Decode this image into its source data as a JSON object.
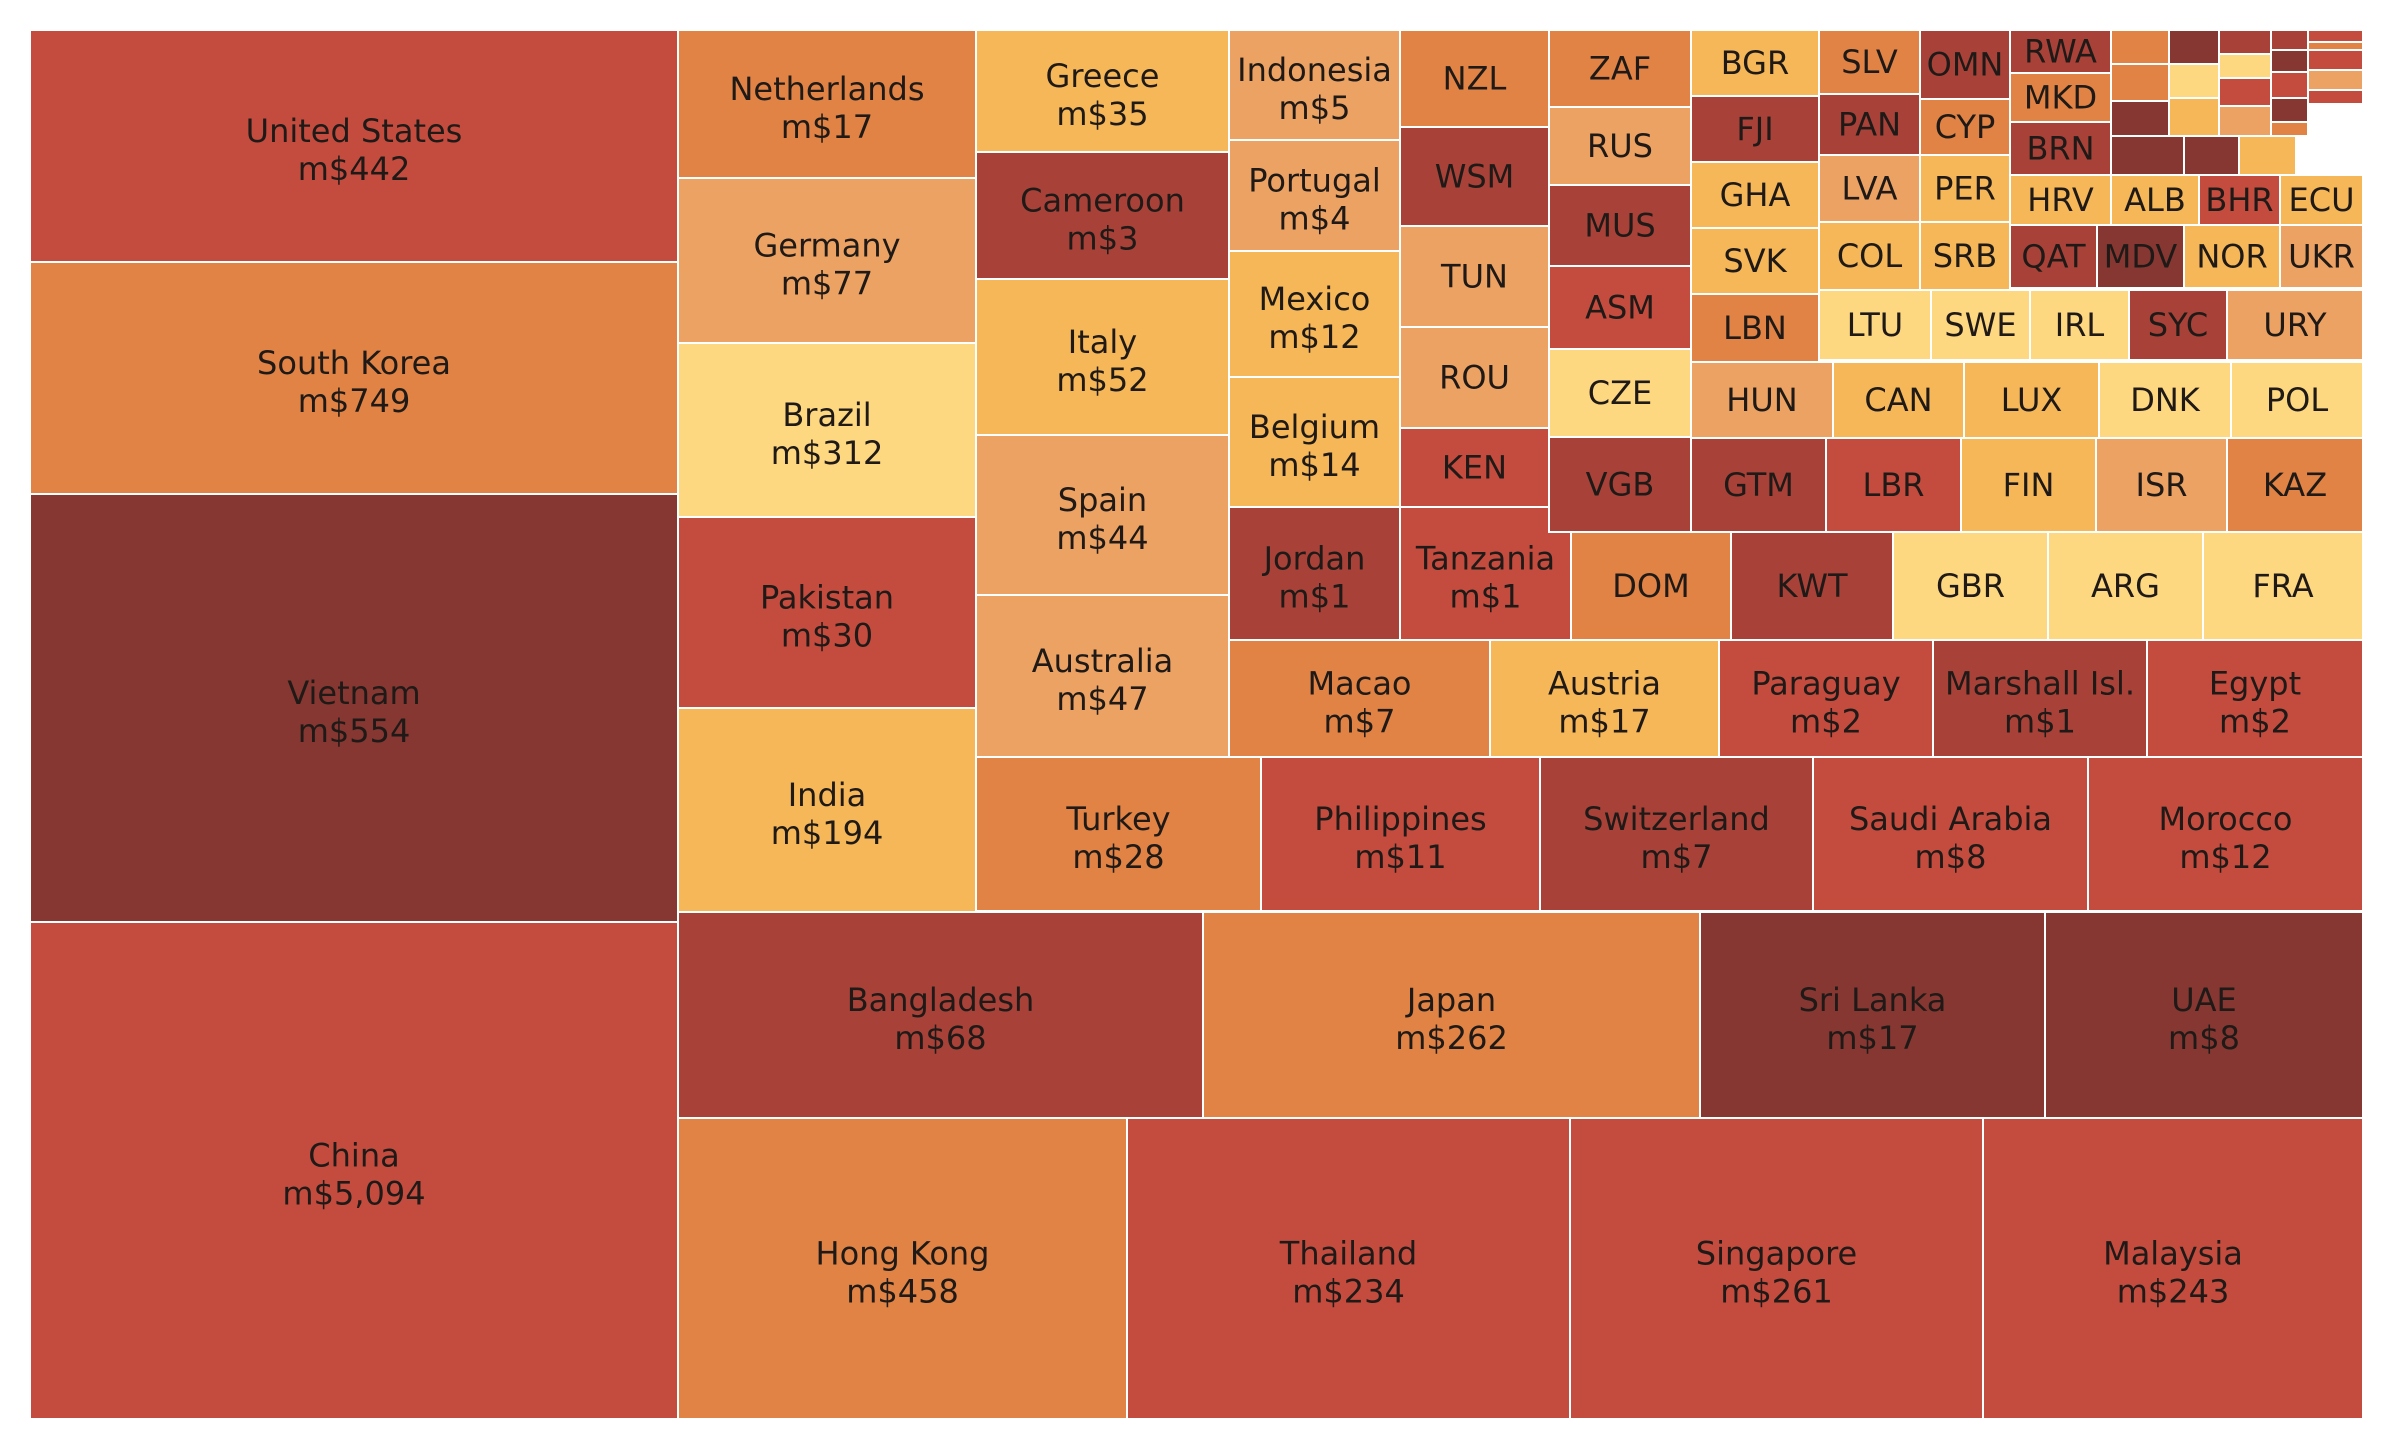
{
  "colors": {
    "c1": "#863731",
    "c2": "#a84239",
    "c3": "#c44c3f",
    "c4": "#e08345",
    "c5": "#eca262",
    "c6": "#f5b757",
    "c7": "#fdd880"
  },
  "chart_data": {
    "type": "treemap",
    "title": "",
    "value_prefix": "m$",
    "tiles": [
      {
        "label": "United States",
        "value": 442,
        "color": "c3"
      },
      {
        "label": "South Korea",
        "value": 749,
        "color": "c4"
      },
      {
        "label": "Vietnam",
        "value": 554,
        "color": "c1"
      },
      {
        "label": "China",
        "value": 5094,
        "color": "c3"
      },
      {
        "label": "Netherlands",
        "value": 17,
        "color": "c4"
      },
      {
        "label": "Germany",
        "value": 77,
        "color": "c5"
      },
      {
        "label": "Brazil",
        "value": 312,
        "color": "c7"
      },
      {
        "label": "Pakistan",
        "value": 30,
        "color": "c3"
      },
      {
        "label": "India",
        "value": 194,
        "color": "c6"
      },
      {
        "label": "Greece",
        "value": 35,
        "color": "c6"
      },
      {
        "label": "Cameroon",
        "value": 3,
        "color": "c2"
      },
      {
        "label": "Italy",
        "value": 52,
        "color": "c6"
      },
      {
        "label": "Spain",
        "value": 44,
        "color": "c5"
      },
      {
        "label": "Australia",
        "value": 47,
        "color": "c5"
      },
      {
        "label": "Indonesia",
        "value": 5,
        "color": "c5"
      },
      {
        "label": "Portugal",
        "value": 4,
        "color": "c5"
      },
      {
        "label": "Mexico",
        "value": 12,
        "color": "c6"
      },
      {
        "label": "Belgium",
        "value": 14,
        "color": "c6"
      },
      {
        "label": "Jordan",
        "value": 1,
        "color": "c2"
      },
      {
        "label": "Tanzania",
        "value": 1,
        "color": "c3"
      },
      {
        "label": "Macao",
        "value": 7,
        "color": "c4"
      },
      {
        "label": "Austria",
        "value": 17,
        "color": "c6"
      },
      {
        "label": "Paraguay",
        "value": 2,
        "color": "c3"
      },
      {
        "label": "Marshall Isl.",
        "value": 1,
        "color": "c2"
      },
      {
        "label": "Egypt",
        "value": 2,
        "color": "c3"
      },
      {
        "label": "Turkey",
        "value": 28,
        "color": "c4"
      },
      {
        "label": "Philippines",
        "value": 11,
        "color": "c3"
      },
      {
        "label": "Switzerland",
        "value": 7,
        "color": "c2"
      },
      {
        "label": "Saudi Arabia",
        "value": 8,
        "color": "c3"
      },
      {
        "label": "Morocco",
        "value": 12,
        "color": "c3"
      },
      {
        "label": "Bangladesh",
        "value": 68,
        "color": "c2"
      },
      {
        "label": "Japan",
        "value": 262,
        "color": "c4"
      },
      {
        "label": "Sri Lanka",
        "value": 17,
        "color": "c1"
      },
      {
        "label": "UAE",
        "value": 8,
        "color": "c1"
      },
      {
        "label": "Hong Kong",
        "value": 458,
        "color": "c4"
      },
      {
        "label": "Thailand",
        "value": 234,
        "color": "c3"
      },
      {
        "label": "Singapore",
        "value": 261,
        "color": "c3"
      },
      {
        "label": "Malaysia",
        "value": 243,
        "color": "c3"
      },
      {
        "label": "NZL",
        "color": "c4"
      },
      {
        "label": "WSM",
        "color": "c2"
      },
      {
        "label": "TUN",
        "color": "c5"
      },
      {
        "label": "ROU",
        "color": "c5"
      },
      {
        "label": "KEN",
        "color": "c3"
      },
      {
        "label": "ZAF",
        "color": "c4"
      },
      {
        "label": "RUS",
        "color": "c5"
      },
      {
        "label": "MUS",
        "color": "c2"
      },
      {
        "label": "ASM",
        "color": "c3"
      },
      {
        "label": "CZE",
        "color": "c7"
      },
      {
        "label": "VGB",
        "color": "c2"
      },
      {
        "label": "BGR",
        "color": "c6"
      },
      {
        "label": "FJI",
        "color": "c2"
      },
      {
        "label": "GHA",
        "color": "c6"
      },
      {
        "label": "SVK",
        "color": "c6"
      },
      {
        "label": "LBN",
        "color": "c4"
      },
      {
        "label": "SLV",
        "color": "c4"
      },
      {
        "label": "PAN",
        "color": "c2"
      },
      {
        "label": "LVA",
        "color": "c5"
      },
      {
        "label": "COL",
        "color": "c6"
      },
      {
        "label": "OMN",
        "color": "c2"
      },
      {
        "label": "CYP",
        "color": "c4"
      },
      {
        "label": "PER",
        "color": "c6"
      },
      {
        "label": "SRB",
        "color": "c6"
      },
      {
        "label": "RWA",
        "color": "c2"
      },
      {
        "label": "MKD",
        "color": "c4"
      },
      {
        "label": "BRN",
        "color": "c2"
      },
      {
        "label": "HRV",
        "color": "c6"
      },
      {
        "label": "QAT",
        "color": "c2"
      },
      {
        "label": "MDV",
        "color": "c1"
      },
      {
        "label": "ALB",
        "color": "c6"
      },
      {
        "label": "BHR",
        "color": "c3"
      },
      {
        "label": "ECU",
        "color": "c6"
      },
      {
        "label": "NOR",
        "color": "c6"
      },
      {
        "label": "UKR",
        "color": "c5"
      },
      {
        "label": "LTU",
        "color": "c7"
      },
      {
        "label": "SWE",
        "color": "c7"
      },
      {
        "label": "IRL",
        "color": "c7"
      },
      {
        "label": "SYC",
        "color": "c2"
      },
      {
        "label": "URY",
        "color": "c5"
      },
      {
        "label": "HUN",
        "color": "c5"
      },
      {
        "label": "CAN",
        "color": "c6"
      },
      {
        "label": "LUX",
        "color": "c6"
      },
      {
        "label": "DNK",
        "color": "c7"
      },
      {
        "label": "POL",
        "color": "c7"
      },
      {
        "label": "GTM",
        "color": "c2"
      },
      {
        "label": "LBR",
        "color": "c3"
      },
      {
        "label": "FIN",
        "color": "c6"
      },
      {
        "label": "ISR",
        "color": "c5"
      },
      {
        "label": "KAZ",
        "color": "c4"
      },
      {
        "label": "DOM",
        "color": "c4"
      },
      {
        "label": "KWT",
        "color": "c2"
      },
      {
        "label": "GBR",
        "color": "c7"
      },
      {
        "label": "ARG",
        "color": "c7"
      },
      {
        "label": "FRA",
        "color": "c7"
      },
      {
        "label": "",
        "color": "c4"
      },
      {
        "label": "",
        "color": "c1"
      },
      {
        "label": "",
        "color": "c2"
      },
      {
        "label": "",
        "color": "c2"
      },
      {
        "label": "",
        "color": "c3"
      },
      {
        "label": "",
        "color": "c4"
      },
      {
        "label": "",
        "color": "c7"
      },
      {
        "label": "",
        "color": "c7"
      },
      {
        "label": "",
        "color": "c1"
      },
      {
        "label": "",
        "color": "c4"
      },
      {
        "label": "",
        "color": "c3"
      },
      {
        "label": "",
        "color": "c3"
      },
      {
        "label": "",
        "color": "c5"
      },
      {
        "label": "",
        "color": "c1"
      },
      {
        "label": "",
        "color": "c6"
      },
      {
        "label": "",
        "color": "c3"
      },
      {
        "label": "",
        "color": "c1"
      },
      {
        "label": "",
        "color": "c3"
      },
      {
        "label": "",
        "color": "c5"
      },
      {
        "label": "",
        "color": "c4"
      },
      {
        "label": "",
        "color": "c1"
      },
      {
        "label": "",
        "color": "c1"
      },
      {
        "label": "",
        "color": "c6"
      }
    ]
  }
}
